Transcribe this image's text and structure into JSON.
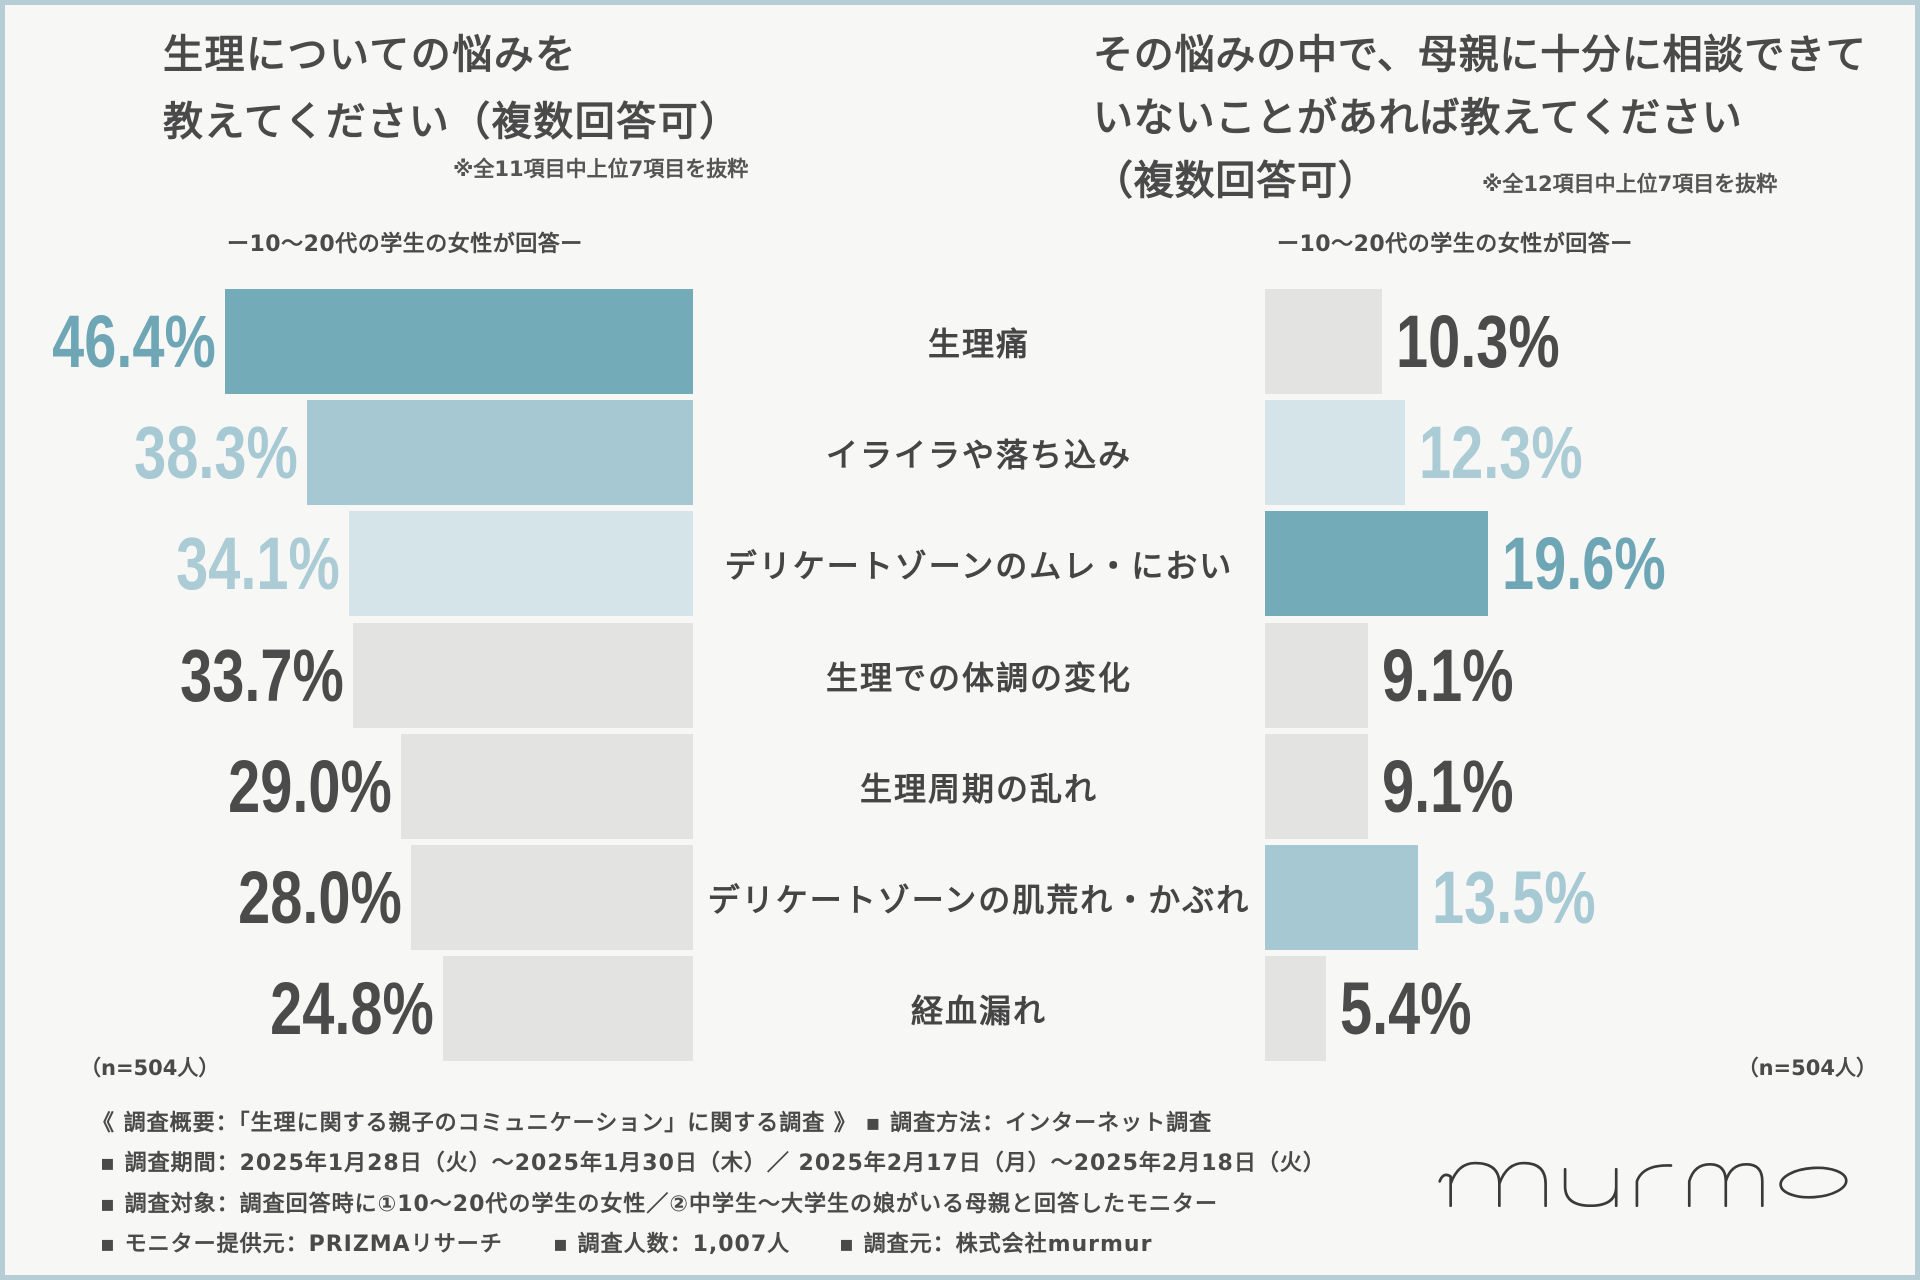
{
  "chart_data": {
    "type": "bar",
    "orientation": "horizontal",
    "layout": "back-to-back",
    "unit": "%",
    "categories": [
      "生理痛",
      "イライラや落ち込み",
      "デリケートゾーンのムレ・におい",
      "生理での体調の変化",
      "生理周期の乱れ",
      "デリケートゾーンの肌荒れ・かぶれ",
      "経血漏れ"
    ],
    "series": [
      {
        "title_lines": [
          "生理についての悩みを",
          "教えてください（複数回答可）"
        ],
        "note": "※全11項目中上位7項目を抜粋",
        "subtitle": "ー10～20代の学生の女性が回答ー",
        "sample_size": "（n=504人）",
        "values": [
          46.4,
          38.3,
          34.1,
          33.7,
          29.0,
          28.0,
          24.8
        ],
        "bar_colors": [
          "#73abb9",
          "#a5c8d2",
          "#d4e4e9",
          "#e3e3e2",
          "#e3e3e2",
          "#e3e3e2",
          "#e3e3e2"
        ],
        "label_colors": [
          "#6fa6b5",
          "#a7c9d3",
          "#abcbd5",
          "#4b4b4b",
          "#4b4b4b",
          "#4b4b4b",
          "#4b4b4b"
        ]
      },
      {
        "title_lines": [
          "その悩みの中で、母親に十分に相談できて",
          "いないことがあれば教えてください",
          "（複数回答可）"
        ],
        "note": "※全12項目中上位7項目を抜粋",
        "subtitle": "ー10～20代の学生の女性が回答ー",
        "sample_size": "（n=504人）",
        "values": [
          10.3,
          12.3,
          19.6,
          9.1,
          9.1,
          13.5,
          5.4
        ],
        "bar_colors": [
          "#e3e3e2",
          "#d4e4e9",
          "#73abb9",
          "#e3e3e2",
          "#e3e3e2",
          "#a5c8d2",
          "#e3e3e2"
        ],
        "label_colors": [
          "#4b4b4b",
          "#abcbd5",
          "#6fa6b5",
          "#4b4b4b",
          "#4b4b4b",
          "#a7c9d3",
          "#4b4b4b"
        ]
      }
    ]
  },
  "footer": {
    "overview": "《 調査概要：「生理に関する親子のコミュニケーション」に関する調査 》 ▪ 調査方法：インターネット調査",
    "period": "▪ 調査期間：2025年1月28日（火）～2025年1月30日（木）／ 2025年2月17日（月）～2025年2月18日（火）",
    "target": "▪ 調査対象：調査回答時に①10～20代の学生の女性／②中学生～大学生の娘がいる母親と回答したモニター",
    "provider": "▪ モニター提供元：PRIZMAリサーチ",
    "respondents": "▪ 調査人数：1,007人",
    "organizer": "▪ 調査元：株式会社murmur"
  },
  "logo": {
    "text": "murmo",
    "icon": "murmo-wordmark"
  },
  "colors": {
    "background": "#f7f7f5",
    "frame": "#b6cdd6",
    "text": "#4a4a4a"
  }
}
